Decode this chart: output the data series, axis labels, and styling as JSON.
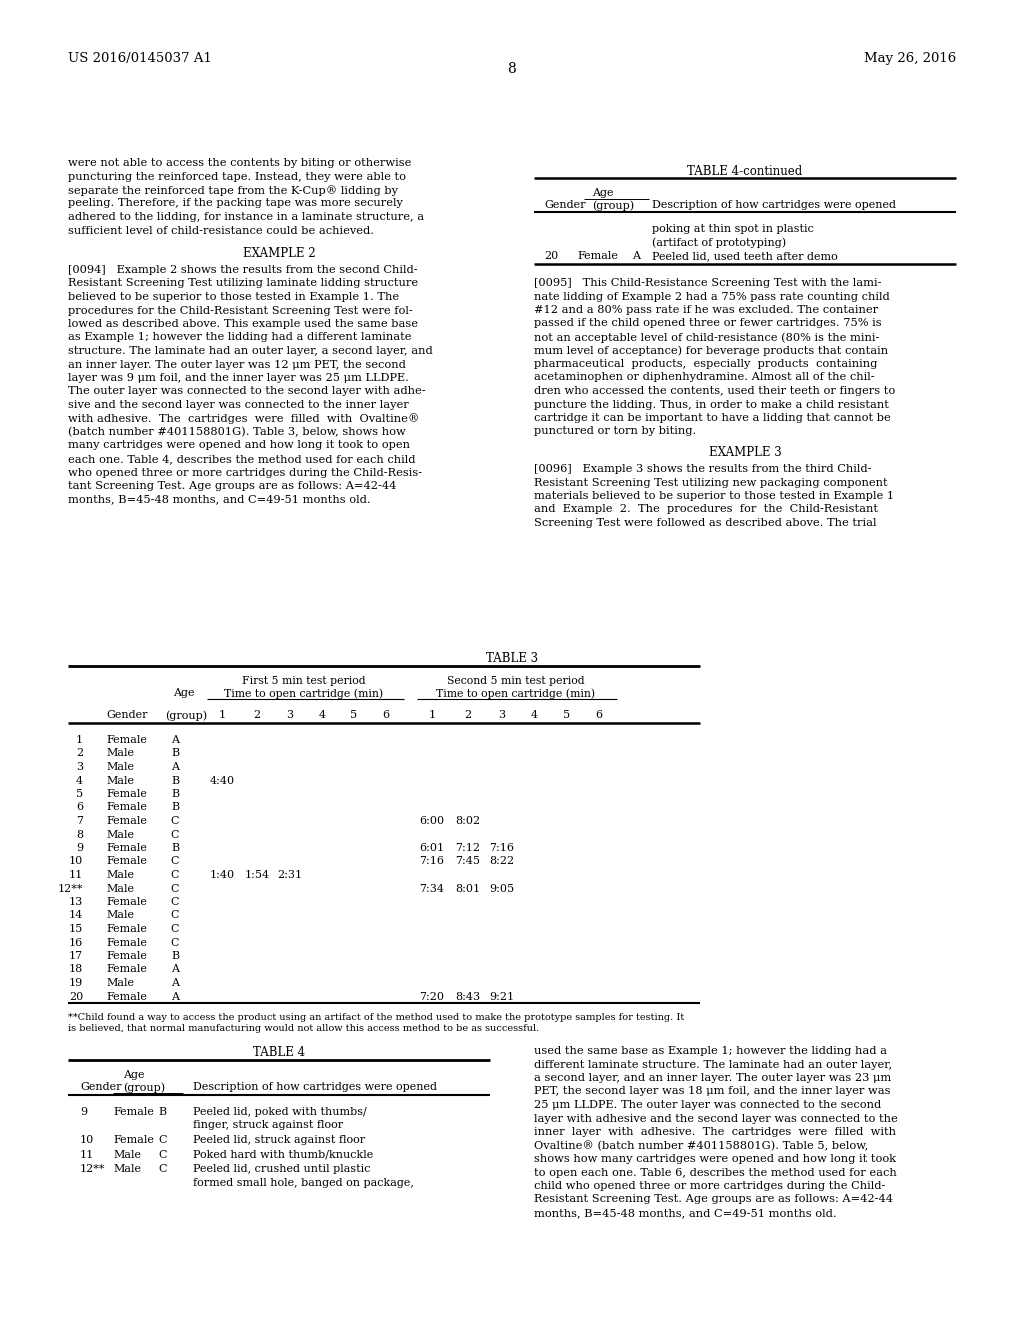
{
  "bg_color": "#ffffff",
  "header_left": "US 2016/0145037 A1",
  "header_right": "May 26, 2016",
  "page_number": "8",
  "table3_rows": [
    [
      "1",
      "Female",
      "A",
      "",
      "",
      "",
      "",
      "",
      "",
      "",
      "",
      "",
      "",
      "",
      ""
    ],
    [
      "2",
      "Male",
      "B",
      "",
      "",
      "",
      "",
      "",
      "",
      "",
      "",
      "",
      "",
      "",
      ""
    ],
    [
      "3",
      "Male",
      "A",
      "",
      "",
      "",
      "",
      "",
      "",
      "",
      "",
      "",
      "",
      "",
      ""
    ],
    [
      "4",
      "Male",
      "B",
      "4:40",
      "",
      "",
      "",
      "",
      "",
      "",
      "",
      "",
      "",
      "",
      ""
    ],
    [
      "5",
      "Female",
      "B",
      "",
      "",
      "",
      "",
      "",
      "",
      "",
      "",
      "",
      "",
      "",
      ""
    ],
    [
      "6",
      "Female",
      "B",
      "",
      "",
      "",
      "",
      "",
      "",
      "",
      "",
      "",
      "",
      "",
      ""
    ],
    [
      "7",
      "Female",
      "C",
      "",
      "",
      "",
      "",
      "",
      "",
      "6:00",
      "8:02",
      "",
      "",
      "",
      ""
    ],
    [
      "8",
      "Male",
      "C",
      "",
      "",
      "",
      "",
      "",
      "",
      "",
      "",
      "",
      "",
      "",
      ""
    ],
    [
      "9",
      "Female",
      "B",
      "",
      "",
      "",
      "",
      "",
      "",
      "6:01",
      "7:12",
      "7:16",
      "",
      "",
      ""
    ],
    [
      "10",
      "Female",
      "C",
      "",
      "",
      "",
      "",
      "",
      "",
      "7:16",
      "7:45",
      "8:22",
      "",
      "",
      ""
    ],
    [
      "11",
      "Male",
      "C",
      "1:40",
      "1:54",
      "2:31",
      "",
      "",
      "",
      "",
      "",
      "",
      "",
      "",
      ""
    ],
    [
      "12**",
      "Male",
      "C",
      "",
      "",
      "",
      "",
      "",
      "",
      "7:34",
      "8:01",
      "9:05",
      "",
      "",
      ""
    ],
    [
      "13",
      "Female",
      "C",
      "",
      "",
      "",
      "",
      "",
      "",
      "",
      "",
      "",
      "",
      "",
      ""
    ],
    [
      "14",
      "Male",
      "C",
      "",
      "",
      "",
      "",
      "",
      "",
      "",
      "",
      "",
      "",
      "",
      ""
    ],
    [
      "15",
      "Female",
      "C",
      "",
      "",
      "",
      "",
      "",
      "",
      "",
      "",
      "",
      "",
      "",
      ""
    ],
    [
      "16",
      "Female",
      "C",
      "",
      "",
      "",
      "",
      "",
      "",
      "",
      "",
      "",
      "",
      "",
      ""
    ],
    [
      "17",
      "Female",
      "B",
      "",
      "",
      "",
      "",
      "",
      "",
      "",
      "",
      "",
      "",
      "",
      ""
    ],
    [
      "18",
      "Female",
      "A",
      "",
      "",
      "",
      "",
      "",
      "",
      "",
      "",
      "",
      "",
      "",
      ""
    ],
    [
      "19",
      "Male",
      "A",
      "",
      "",
      "",
      "",
      "",
      "",
      "",
      "",
      "",
      "",
      "",
      ""
    ],
    [
      "20",
      "Female",
      "A",
      "",
      "",
      "",
      "",
      "",
      "",
      "7:20",
      "8:43",
      "9:21",
      "",
      "",
      ""
    ]
  ]
}
